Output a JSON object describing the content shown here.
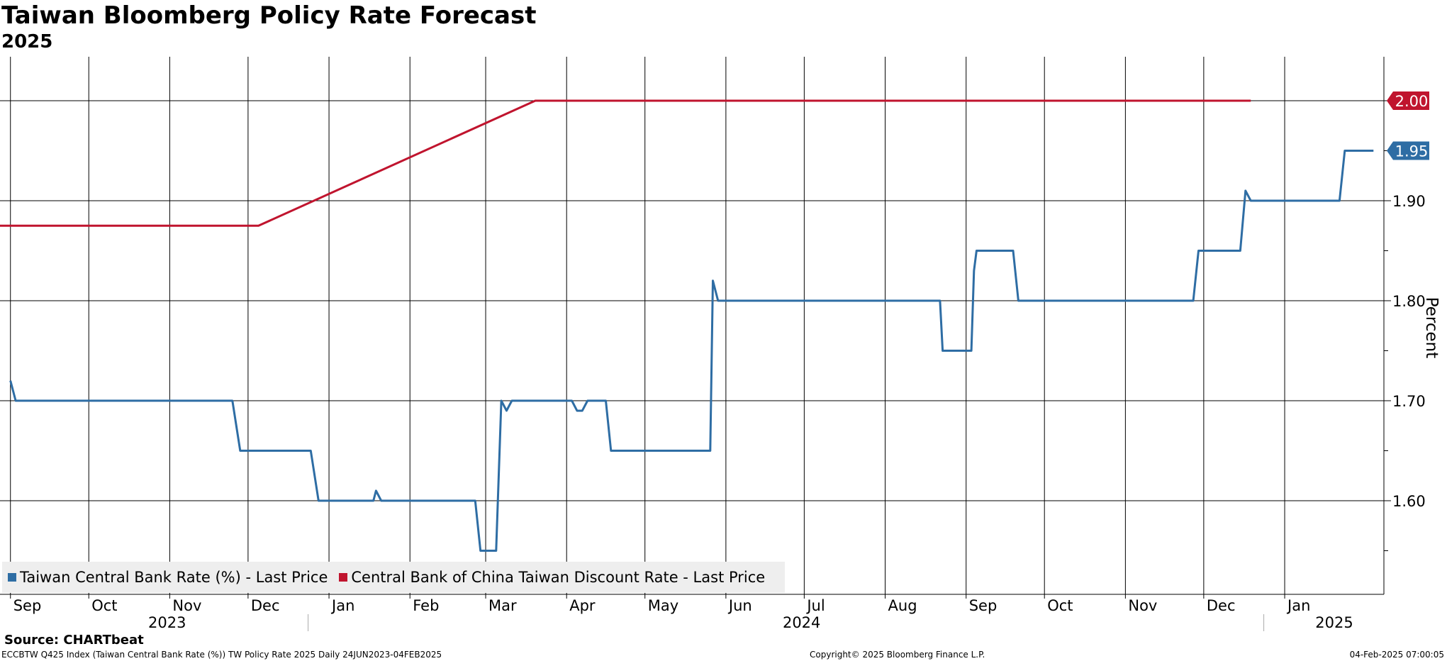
{
  "chart_data": {
    "type": "line",
    "title": "Taiwan Bloomberg Policy Rate Forecast",
    "subtitle": "2025",
    "ylabel": "Percent",
    "xlabel": "",
    "ylim": [
      1.5,
      2.05
    ],
    "y_ticks": [
      "1.60",
      "1.70",
      "1.80",
      "1.90"
    ],
    "grid": true,
    "legend": "bottom-left",
    "x_month_labels": [
      {
        "label": "Sep",
        "date": "2023-09-01"
      },
      {
        "label": "Oct",
        "date": "2023-10-01"
      },
      {
        "label": "Nov",
        "date": "2023-11-01"
      },
      {
        "label": "Dec",
        "date": "2023-12-01"
      },
      {
        "label": "Jan",
        "date": "2024-01-01"
      },
      {
        "label": "Feb",
        "date": "2024-02-01"
      },
      {
        "label": "Mar",
        "date": "2024-03-01"
      },
      {
        "label": "Apr",
        "date": "2024-04-01"
      },
      {
        "label": "May",
        "date": "2024-05-01"
      },
      {
        "label": "Jun",
        "date": "2024-06-01"
      },
      {
        "label": "Jul",
        "date": "2024-07-01"
      },
      {
        "label": "Aug",
        "date": "2024-08-01"
      },
      {
        "label": "Sep",
        "date": "2024-09-01"
      },
      {
        "label": "Oct",
        "date": "2024-10-01"
      },
      {
        "label": "Nov",
        "date": "2024-11-01"
      },
      {
        "label": "Dec",
        "date": "2024-12-01"
      },
      {
        "label": "Jan",
        "date": "2025-01-01"
      }
    ],
    "x_year_labels": [
      {
        "label": "2023",
        "date": "2023-10-31"
      },
      {
        "label": "2024",
        "date": "2024-06-30"
      },
      {
        "label": "2025",
        "date": "2025-01-20"
      }
    ],
    "series": [
      {
        "name": "Taiwan Central Bank Rate (%) - Last Price",
        "color": "#2e6da4",
        "last_value": "1.95",
        "points": [
          {
            "x": "2023-09-01",
            "y": 1.72
          },
          {
            "x": "2023-09-03",
            "y": 1.7
          },
          {
            "x": "2023-11-25",
            "y": 1.7
          },
          {
            "x": "2023-11-28",
            "y": 1.65
          },
          {
            "x": "2023-12-25",
            "y": 1.65
          },
          {
            "x": "2023-12-28",
            "y": 1.6
          },
          {
            "x": "2024-01-18",
            "y": 1.6
          },
          {
            "x": "2024-01-19",
            "y": 1.61
          },
          {
            "x": "2024-01-21",
            "y": 1.6
          },
          {
            "x": "2024-02-26",
            "y": 1.6
          },
          {
            "x": "2024-02-28",
            "y": 1.55
          },
          {
            "x": "2024-03-05",
            "y": 1.55
          },
          {
            "x": "2024-03-07",
            "y": 1.7
          },
          {
            "x": "2024-03-09",
            "y": 1.69
          },
          {
            "x": "2024-03-11",
            "y": 1.7
          },
          {
            "x": "2024-04-03",
            "y": 1.7
          },
          {
            "x": "2024-04-05",
            "y": 1.69
          },
          {
            "x": "2024-04-07",
            "y": 1.69
          },
          {
            "x": "2024-04-09",
            "y": 1.7
          },
          {
            "x": "2024-04-16",
            "y": 1.7
          },
          {
            "x": "2024-04-18",
            "y": 1.65
          },
          {
            "x": "2024-05-26",
            "y": 1.65
          },
          {
            "x": "2024-05-27",
            "y": 1.82
          },
          {
            "x": "2024-05-29",
            "y": 1.8
          },
          {
            "x": "2024-08-22",
            "y": 1.8
          },
          {
            "x": "2024-08-23",
            "y": 1.75
          },
          {
            "x": "2024-09-03",
            "y": 1.75
          },
          {
            "x": "2024-09-04",
            "y": 1.83
          },
          {
            "x": "2024-09-05",
            "y": 1.85
          },
          {
            "x": "2024-09-19",
            "y": 1.85
          },
          {
            "x": "2024-09-21",
            "y": 1.8
          },
          {
            "x": "2024-11-27",
            "y": 1.8
          },
          {
            "x": "2024-11-29",
            "y": 1.85
          },
          {
            "x": "2024-12-15",
            "y": 1.85
          },
          {
            "x": "2024-12-17",
            "y": 1.91
          },
          {
            "x": "2024-12-19",
            "y": 1.9
          },
          {
            "x": "2025-01-22",
            "y": 1.9
          },
          {
            "x": "2025-01-24",
            "y": 1.95
          },
          {
            "x": "2025-02-04",
            "y": 1.95
          }
        ]
      },
      {
        "name": "Central Bank of China Taiwan Discount Rate - Last Price",
        "color": "#c0142e",
        "last_value": "2.00",
        "points": [
          {
            "x": "2023-06-24",
            "y": 1.875
          },
          {
            "x": "2023-12-05",
            "y": 1.875
          },
          {
            "x": "2024-03-20",
            "y": 2.0
          },
          {
            "x": "2024-12-19",
            "y": 2.0
          }
        ]
      }
    ]
  },
  "source": "Source: CHARTbeat",
  "footer": {
    "left": "ECCBTW Q425 Index (Taiwan Central Bank Rate (%)) TW Policy Rate 2025  Daily 24JUN2023-04FEB2025",
    "center": "Copyright© 2025 Bloomberg Finance L.P.",
    "right": "04-Feb-2025 07:00:05"
  }
}
